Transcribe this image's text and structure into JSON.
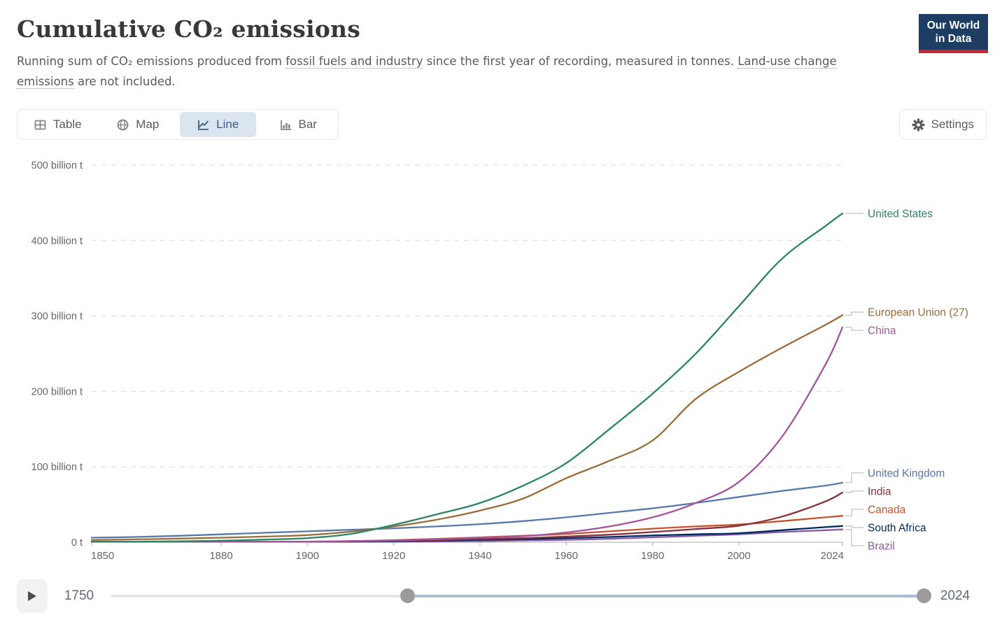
{
  "header": {
    "title": "Cumulative CO₂ emissions",
    "subtitle_segments": [
      {
        "text": "Running sum of CO₂ emissions produced from ",
        "link": false
      },
      {
        "text": "fossil fuels and industry",
        "link": true
      },
      {
        "text": " since the first year of recording, measured in tonnes. ",
        "link": false
      },
      {
        "text": "Land-use change emissions",
        "link": true
      },
      {
        "text": " are not included.",
        "link": false
      }
    ]
  },
  "logo": {
    "line1": "Our World",
    "line2": "in Data"
  },
  "tabs": {
    "items": [
      {
        "id": "table",
        "label": "Table",
        "active": false
      },
      {
        "id": "map",
        "label": "Map",
        "active": false
      },
      {
        "id": "line",
        "label": "Line",
        "active": true
      },
      {
        "id": "bar",
        "label": "Bar",
        "active": false
      }
    ]
  },
  "settings": {
    "label": "Settings"
  },
  "colors": {
    "active_tab_bg": "#dbe5f0",
    "active_tab_text": "#3d5c84",
    "logo_bg": "#1d3d63",
    "logo_red": "#c7252f",
    "gridline": "#dcdcdc",
    "axis_line": "#a8a8a8",
    "axis_text": "#666666",
    "timeline_active": "#a9bdd1",
    "timeline_handle": "#9b9b9b"
  },
  "chart_data": {
    "type": "line",
    "title": "Cumulative CO₂ emissions",
    "unit": "tonnes",
    "x_range": [
      1850,
      2024
    ],
    "y_range": [
      0,
      500
    ],
    "grid": "horizontal-dashed",
    "legend_position": "right-end-labels",
    "x_ticks": [
      1850,
      1880,
      1900,
      1920,
      1940,
      1960,
      1980,
      2000,
      2024
    ],
    "y_ticks": [
      {
        "value": 0,
        "label": "0 t"
      },
      {
        "value": 100,
        "label": "100 billion t"
      },
      {
        "value": 200,
        "label": "200 billion t"
      },
      {
        "value": 300,
        "label": "300 billion t"
      },
      {
        "value": 400,
        "label": "400 billion t"
      },
      {
        "value": 500,
        "label": "500 billion t"
      }
    ],
    "years": [
      1850,
      1860,
      1870,
      1880,
      1890,
      1900,
      1910,
      1920,
      1930,
      1940,
      1950,
      1960,
      1970,
      1980,
      1990,
      2000,
      2010,
      2020,
      2024
    ],
    "series": [
      {
        "name": "United States",
        "color": "#2c8465",
        "values": [
          0.4,
          0.8,
          1.3,
          2,
          3.5,
          5.5,
          11,
          23,
          37,
          52,
          75,
          105,
          150,
          197,
          250,
          313,
          376,
          419,
          436
        ]
      },
      {
        "name": "European Union (27)",
        "color": "#996d39",
        "values": [
          3,
          3.8,
          4.8,
          6,
          7.5,
          9.5,
          14,
          21,
          30,
          42,
          58,
          85,
          108,
          135,
          190,
          226,
          258,
          288,
          301
        ]
      },
      {
        "name": "China",
        "color": "#a2559c",
        "values": [
          0.1,
          0.15,
          0.2,
          0.3,
          0.5,
          0.8,
          1.5,
          2.5,
          4,
          6,
          8,
          13,
          21,
          33,
          52,
          80,
          140,
          235,
          285
        ]
      },
      {
        "name": "United Kingdom",
        "color": "#5878ab",
        "values": [
          6,
          7,
          8.5,
          10.5,
          12.5,
          14.5,
          16.5,
          18.5,
          21,
          24,
          28,
          33,
          39,
          45,
          52,
          60,
          68,
          75,
          79
        ]
      },
      {
        "name": "India",
        "color": "#883039",
        "values": [
          0.05,
          0.1,
          0.15,
          0.25,
          0.4,
          0.7,
          1.2,
          2,
          3,
          4.2,
          5.5,
          7.5,
          10,
          13.5,
          17.5,
          22,
          34,
          54,
          66
        ]
      },
      {
        "name": "Canada",
        "color": "#c9522e",
        "values": [
          0.02,
          0.05,
          0.1,
          0.2,
          0.4,
          0.7,
          1.5,
          2.8,
          4.5,
          6.5,
          8.5,
          11,
          14.5,
          18,
          21,
          23.5,
          28,
          33,
          35
        ]
      },
      {
        "name": "South Africa",
        "color": "#00295d",
        "values": [
          0.01,
          0.02,
          0.05,
          0.1,
          0.2,
          0.4,
          0.8,
          1.4,
          2.2,
          3.2,
          4.2,
          5.5,
          7,
          9,
          10.5,
          12,
          16,
          20,
          21.5
        ]
      },
      {
        "name": "Brazil",
        "color": "#8a5ba5",
        "values": [
          0.01,
          0.02,
          0.03,
          0.05,
          0.1,
          0.2,
          0.4,
          0.7,
          1.1,
          1.6,
          2.3,
          3.2,
          4.5,
          6.5,
          8.5,
          10.5,
          13.5,
          16,
          17
        ]
      }
    ]
  },
  "timeline": {
    "min_year": 1750,
    "max_year": 2024,
    "selected_start_year": 1850,
    "selected_end_year": 2024,
    "min_label": "1750",
    "max_label": "2024"
  }
}
